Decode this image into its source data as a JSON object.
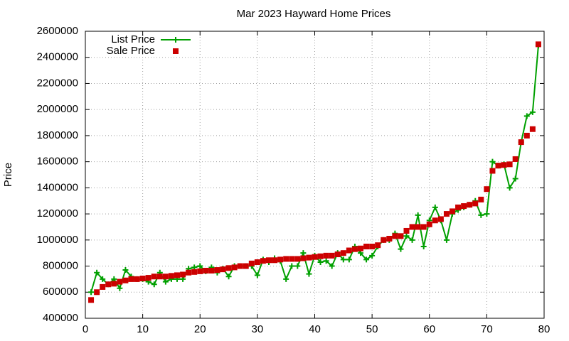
{
  "chart_data": {
    "type": "line",
    "title": "Mar 2023 Hayward Home Prices",
    "y_label": "Price",
    "x": [
      1,
      2,
      3,
      4,
      5,
      6,
      7,
      8,
      9,
      10,
      11,
      12,
      13,
      14,
      15,
      16,
      17,
      18,
      19,
      20,
      21,
      22,
      23,
      24,
      25,
      26,
      27,
      28,
      29,
      30,
      31,
      32,
      33,
      34,
      35,
      36,
      37,
      38,
      39,
      40,
      41,
      42,
      43,
      44,
      45,
      46,
      47,
      48,
      49,
      50,
      51,
      52,
      53,
      54,
      55,
      56,
      57,
      58,
      59,
      60,
      61,
      62,
      63,
      64,
      65,
      66,
      67,
      68,
      69,
      70,
      71,
      72,
      73,
      74,
      75,
      76,
      77,
      78,
      79
    ],
    "series": [
      {
        "name": "List Price",
        "color": "#00a000",
        "marker": "plus",
        "line": true,
        "values": [
          600000,
          750000,
          700000,
          660000,
          700000,
          630000,
          770000,
          720000,
          700000,
          700000,
          680000,
          660000,
          750000,
          680000,
          700000,
          700000,
          700000,
          780000,
          790000,
          800000,
          760000,
          790000,
          750000,
          780000,
          720000,
          800000,
          800000,
          800000,
          800000,
          730000,
          850000,
          830000,
          860000,
          840000,
          700000,
          800000,
          800000,
          900000,
          740000,
          880000,
          830000,
          840000,
          800000,
          900000,
          850000,
          850000,
          950000,
          900000,
          850000,
          880000,
          950000,
          1000000,
          1000000,
          1050000,
          930000,
          1030000,
          1000000,
          1190000,
          950000,
          1150000,
          1250000,
          1150000,
          1000000,
          1200000,
          1230000,
          1250000,
          1270000,
          1300000,
          1190000,
          1200000,
          1600000,
          1570000,
          1580000,
          1400000,
          1470000,
          1750000,
          1950000,
          1980000,
          2490000
        ]
      },
      {
        "name": "Sale Price",
        "color": "#cc0000",
        "marker": "square",
        "line": false,
        "values": [
          540000,
          600000,
          640000,
          660000,
          665000,
          680000,
          690000,
          700000,
          700000,
          705000,
          710000,
          720000,
          720000,
          720000,
          725000,
          730000,
          735000,
          750000,
          755000,
          760000,
          765000,
          765000,
          770000,
          775000,
          785000,
          790000,
          800000,
          800000,
          820000,
          830000,
          840000,
          845000,
          845000,
          850000,
          855000,
          855000,
          855000,
          860000,
          865000,
          870000,
          875000,
          880000,
          880000,
          890000,
          900000,
          920000,
          930000,
          935000,
          950000,
          950000,
          960000,
          1000000,
          1010000,
          1030000,
          1030000,
          1070000,
          1100000,
          1100000,
          1100000,
          1120000,
          1150000,
          1160000,
          1200000,
          1220000,
          1250000,
          1260000,
          1270000,
          1280000,
          1310000,
          1390000,
          1530000,
          1570000,
          1575000,
          1580000,
          1620000,
          1750000,
          1800000,
          1850000,
          2500000
        ]
      }
    ],
    "xlim": [
      0,
      80
    ],
    "xticks": [
      0,
      10,
      20,
      30,
      40,
      50,
      60,
      70,
      80
    ],
    "ylim": [
      400000,
      2600000
    ],
    "yticks": [
      400000,
      600000,
      800000,
      1000000,
      1200000,
      1400000,
      1600000,
      1800000,
      2000000,
      2200000,
      2400000,
      2600000
    ],
    "grid": true,
    "legend": "top-left"
  }
}
